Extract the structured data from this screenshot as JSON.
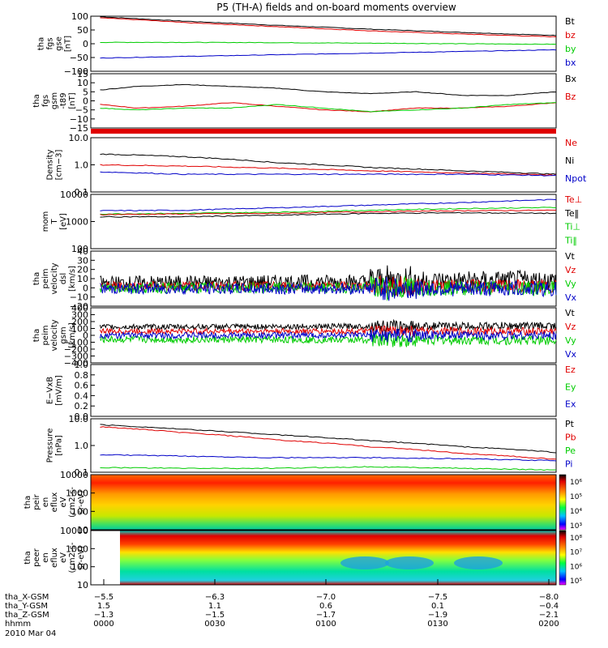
{
  "title": "P5 (TH-A) fields and on-board moments overview",
  "colors": {
    "black": "#000000",
    "red": "#e00000",
    "green": "#00cc00",
    "blue": "#0000c8"
  },
  "chart_data": [
    {
      "type": "line",
      "ylabel": [
        "tha",
        "fgs",
        "gse",
        "[nT]"
      ],
      "yticks": [
        "100",
        "50",
        "0",
        "−50",
        "−100"
      ],
      "ylim": [
        -100,
        100
      ],
      "legend": [
        {
          "text": "Bt",
          "color": "black"
        },
        {
          "text": "bz",
          "color": "red"
        },
        {
          "text": "by",
          "color": "green"
        },
        {
          "text": "bx",
          "color": "blue"
        }
      ],
      "series": [
        {
          "name": "Bt",
          "color": "black",
          "x": [
            0.02,
            0.2,
            0.4,
            0.6,
            0.8,
            1.0
          ],
          "y": [
            98,
            82,
            67,
            53,
            41,
            30
          ]
        },
        {
          "name": "bz",
          "color": "red",
          "x": [
            0.02,
            0.2,
            0.4,
            0.6,
            0.8,
            1.0
          ],
          "y": [
            95,
            77,
            62,
            47,
            35,
            25
          ]
        },
        {
          "name": "by",
          "color": "green",
          "x": [
            0.02,
            0.2,
            0.4,
            0.6,
            0.8,
            1.0
          ],
          "y": [
            5,
            5,
            4,
            2,
            0,
            -2
          ]
        },
        {
          "name": "bx",
          "color": "blue",
          "x": [
            0.02,
            0.2,
            0.4,
            0.6,
            0.8,
            1.0
          ],
          "y": [
            -52,
            -46,
            -40,
            -34,
            -28,
            -22
          ]
        }
      ]
    },
    {
      "type": "line",
      "ylabel": [
        "tha",
        "fgs",
        "gsm",
        "-t89",
        "[nT]"
      ],
      "yticks": [
        "15",
        "10",
        "5",
        "0",
        "−5",
        "−10",
        "−15"
      ],
      "ylim": [
        -15,
        15
      ],
      "legend": [
        {
          "text": "Bx",
          "color": "black"
        },
        {
          "text": "Bz",
          "color": "red"
        }
      ],
      "series": [
        {
          "name": "Bx",
          "color": "black",
          "x": [
            0.02,
            0.1,
            0.2,
            0.3,
            0.4,
            0.5,
            0.6,
            0.7,
            0.8,
            0.9,
            1.0
          ],
          "y": [
            6,
            8,
            9,
            8,
            7,
            5,
            4,
            5,
            3,
            3,
            5
          ]
        },
        {
          "name": "Bz",
          "color": "red",
          "x": [
            0.02,
            0.1,
            0.2,
            0.3,
            0.4,
            0.5,
            0.6,
            0.7,
            0.8,
            0.9,
            1.0
          ],
          "y": [
            -2,
            -4,
            -3,
            -1,
            -3,
            -5,
            -6,
            -4,
            -4,
            -3,
            -1
          ]
        },
        {
          "name": "",
          "color": "green",
          "x": [
            0.02,
            0.1,
            0.2,
            0.3,
            0.4,
            0.5,
            0.6,
            0.7,
            0.8,
            0.9,
            1.0
          ],
          "y": [
            -4,
            -5,
            -4,
            -4,
            -2,
            -4,
            -6,
            -5,
            -4,
            -2,
            -1
          ]
        }
      ]
    },
    {
      "type": "line",
      "scale": "log",
      "ylabel": [
        "Density",
        "[cm−3]"
      ],
      "yticks": [
        "10.0",
        "1.0",
        "0.1"
      ],
      "ylim": [
        0.1,
        10
      ],
      "legend": [
        {
          "text": "Ne",
          "color": "red"
        },
        {
          "text": "Ni",
          "color": "black"
        },
        {
          "text": "Npot",
          "color": "blue"
        }
      ],
      "series": [
        {
          "name": "Ni",
          "color": "black",
          "x": [
            0.02,
            0.2,
            0.4,
            0.6,
            0.8,
            1.0
          ],
          "y": [
            2.5,
            2.0,
            1.2,
            0.8,
            0.6,
            0.45
          ]
        },
        {
          "name": "Ne",
          "color": "red",
          "x": [
            0.02,
            0.2,
            0.4,
            0.6,
            0.8,
            1.0
          ],
          "y": [
            1.0,
            0.9,
            0.75,
            0.6,
            0.5,
            0.42
          ]
        },
        {
          "name": "Npot",
          "color": "blue",
          "x": [
            0.02,
            0.2,
            0.4,
            0.6,
            0.8,
            1.0
          ],
          "y": [
            0.55,
            0.45,
            0.45,
            0.45,
            0.45,
            0.4
          ]
        }
      ]
    },
    {
      "type": "line",
      "scale": "log",
      "ylabel": [
        "mom",
        "T",
        "[eV]"
      ],
      "yticks": [
        "10000",
        "1000",
        "100"
      ],
      "ylim": [
        100,
        10000
      ],
      "legend": [
        {
          "text": "Te⊥",
          "color": "red"
        },
        {
          "text": "Te‖",
          "color": "black"
        },
        {
          "text": "Ti⊥",
          "color": "green"
        },
        {
          "text": "Ti‖",
          "color": "green"
        }
      ],
      "series": [
        {
          "name": "",
          "color": "blue",
          "x": [
            0.02,
            0.2,
            0.4,
            0.6,
            0.8,
            1.0
          ],
          "y": [
            2500,
            2600,
            3200,
            4000,
            5000,
            6500
          ]
        },
        {
          "name": "",
          "color": "green",
          "x": [
            0.02,
            0.2,
            0.4,
            0.6,
            0.8,
            1.0
          ],
          "y": [
            1900,
            2000,
            2200,
            2600,
            3000,
            3300
          ]
        },
        {
          "name": "",
          "color": "red",
          "x": [
            0.02,
            0.2,
            0.4,
            0.6,
            0.8,
            1.0
          ],
          "y": [
            1800,
            1900,
            2000,
            2300,
            2500,
            2600
          ]
        },
        {
          "name": "",
          "color": "black",
          "x": [
            0.02,
            0.2,
            0.4,
            0.6,
            0.8,
            1.0
          ],
          "y": [
            1500,
            1500,
            1700,
            2000,
            2100,
            2000
          ]
        }
      ]
    },
    {
      "type": "line",
      "ylabel": [
        "tha",
        "peim",
        "velocity",
        "dsl",
        "[km/s]"
      ],
      "yticks": [
        "40",
        "30",
        "20",
        "10",
        "0",
        "−10",
        "−20"
      ],
      "ylim": [
        -20,
        40
      ],
      "legend": [
        {
          "text": "Vt",
          "color": "black"
        },
        {
          "text": "Vz",
          "color": "red"
        },
        {
          "text": "Vy",
          "color": "green"
        },
        {
          "text": "Vx",
          "color": "blue"
        }
      ],
      "series": [
        {
          "name": "Vt",
          "color": "black",
          "base": 5,
          "amp": 8,
          "x": [
            0.0,
            1.0
          ],
          "y": [
            5,
            8
          ]
        },
        {
          "name": "Vz",
          "color": "red",
          "base": 2,
          "amp": 5,
          "x": [
            0.0,
            1.0
          ],
          "y": [
            2,
            2
          ]
        },
        {
          "name": "Vy",
          "color": "green",
          "base": 0,
          "amp": 6,
          "x": [
            0.0,
            1.0
          ],
          "y": [
            0,
            0
          ]
        },
        {
          "name": "Vx",
          "color": "blue",
          "base": -1,
          "amp": 6,
          "x": [
            0.0,
            1.0
          ],
          "y": [
            -1,
            -1
          ]
        }
      ]
    },
    {
      "type": "line",
      "ylabel": [
        "tha",
        "peim",
        "velocity",
        "gsm",
        "[km/s]"
      ],
      "yticks": [
        "400",
        "300",
        "200",
        "100",
        "0",
        "−100",
        "−200",
        "−300",
        "−400"
      ],
      "ylim": [
        -400,
        400
      ],
      "legend": [
        {
          "text": "Vt",
          "color": "black"
        },
        {
          "text": "Vz",
          "color": "red"
        },
        {
          "text": "Vy",
          "color": "green"
        },
        {
          "text": "Vx",
          "color": "blue"
        }
      ],
      "series": [
        {
          "name": "Vt",
          "color": "black",
          "base": 120,
          "amp": 40,
          "x": [
            0.0,
            1.0
          ],
          "y": [
            120,
            140
          ]
        },
        {
          "name": "Vz",
          "color": "red",
          "base": 60,
          "amp": 40,
          "x": [
            0.0,
            1.0
          ],
          "y": [
            60,
            60
          ]
        },
        {
          "name": "Vy",
          "color": "green",
          "base": -60,
          "amp": 50,
          "x": [
            0.0,
            1.0
          ],
          "y": [
            -60,
            -70
          ]
        },
        {
          "name": "Vx",
          "color": "blue",
          "base": 0,
          "amp": 45,
          "x": [
            0.0,
            1.0
          ],
          "y": [
            0,
            0
          ]
        }
      ]
    },
    {
      "type": "line",
      "ylabel": [
        "E−VxB",
        "[mV/m]"
      ],
      "yticks": [
        "1.0",
        "0.8",
        "0.6",
        "0.4",
        "0.2",
        "0.0"
      ],
      "ylim": [
        0,
        1
      ],
      "legend": [
        {
          "text": "Ez",
          "color": "red"
        },
        {
          "text": "Ey",
          "color": "green"
        },
        {
          "text": "Ex",
          "color": "blue"
        }
      ],
      "series": []
    },
    {
      "type": "line",
      "scale": "log",
      "ylabel": [
        "Pressure",
        "[nPa]"
      ],
      "yticks": [
        "10.0",
        "1.0",
        "0.1"
      ],
      "ylim": [
        0.1,
        10
      ],
      "legend": [
        {
          "text": "Pt",
          "color": "black"
        },
        {
          "text": "Pb",
          "color": "red"
        },
        {
          "text": "Pe",
          "color": "green"
        },
        {
          "text": "Pi",
          "color": "blue"
        }
      ],
      "series": [
        {
          "name": "Pt",
          "color": "black",
          "x": [
            0.02,
            0.2,
            0.4,
            0.6,
            0.8,
            1.0
          ],
          "y": [
            6,
            4,
            2.5,
            1.5,
            0.9,
            0.55
          ]
        },
        {
          "name": "Pb",
          "color": "red",
          "x": [
            0.02,
            0.2,
            0.4,
            0.6,
            0.8,
            1.0
          ],
          "y": [
            5,
            3,
            1.6,
            0.9,
            0.5,
            0.3
          ]
        },
        {
          "name": "Pi",
          "color": "blue",
          "x": [
            0.02,
            0.2,
            0.4,
            0.6,
            0.8,
            1.0
          ],
          "y": [
            0.45,
            0.4,
            0.35,
            0.35,
            0.32,
            0.27
          ]
        },
        {
          "name": "Pe",
          "color": "green",
          "x": [
            0.02,
            0.2,
            0.4,
            0.6,
            0.8,
            1.0
          ],
          "y": [
            0.15,
            0.14,
            0.14,
            0.16,
            0.14,
            0.12
          ]
        }
      ]
    },
    {
      "type": "heatmap",
      "ylabel": [
        "tha",
        "peir",
        "en",
        "eflux",
        "eV",
        "(cm2-s-",
        "sr-eV)"
      ],
      "yticks": [
        "10000",
        "1000",
        "100",
        "10"
      ],
      "colorbar": [
        "10⁶",
        "10⁵",
        "10⁴",
        "10³"
      ]
    },
    {
      "type": "heatmap",
      "ylabel": [
        "tha",
        "peer",
        "en",
        "eflux",
        "eV",
        "(cm2-s-",
        "sr-eV)"
      ],
      "yticks": [
        "10000",
        "1000",
        "100",
        "10"
      ],
      "colorbar": [
        "10⁸",
        "10⁷",
        "10⁶",
        "10⁵"
      ]
    }
  ],
  "xaxis": {
    "rows": [
      {
        "label": "tha_X-GSM",
        "ticks": [
          "−5.5",
          "−6.3",
          "−7.0",
          "−7.5",
          "−8.0"
        ]
      },
      {
        "label": "tha_Y-GSM",
        "ticks": [
          "1.5",
          "1.1",
          "0.6",
          "0.1",
          "−0.4"
        ]
      },
      {
        "label": "tha_Z-GSM",
        "ticks": [
          "−1.3",
          "−1.5",
          "−1.7",
          "−1.9",
          "−2.1"
        ]
      },
      {
        "label": "hhmm",
        "ticks": [
          "0000",
          "0030",
          "0100",
          "0130",
          "0200"
        ]
      }
    ],
    "date": "2010 Mar 04"
  }
}
